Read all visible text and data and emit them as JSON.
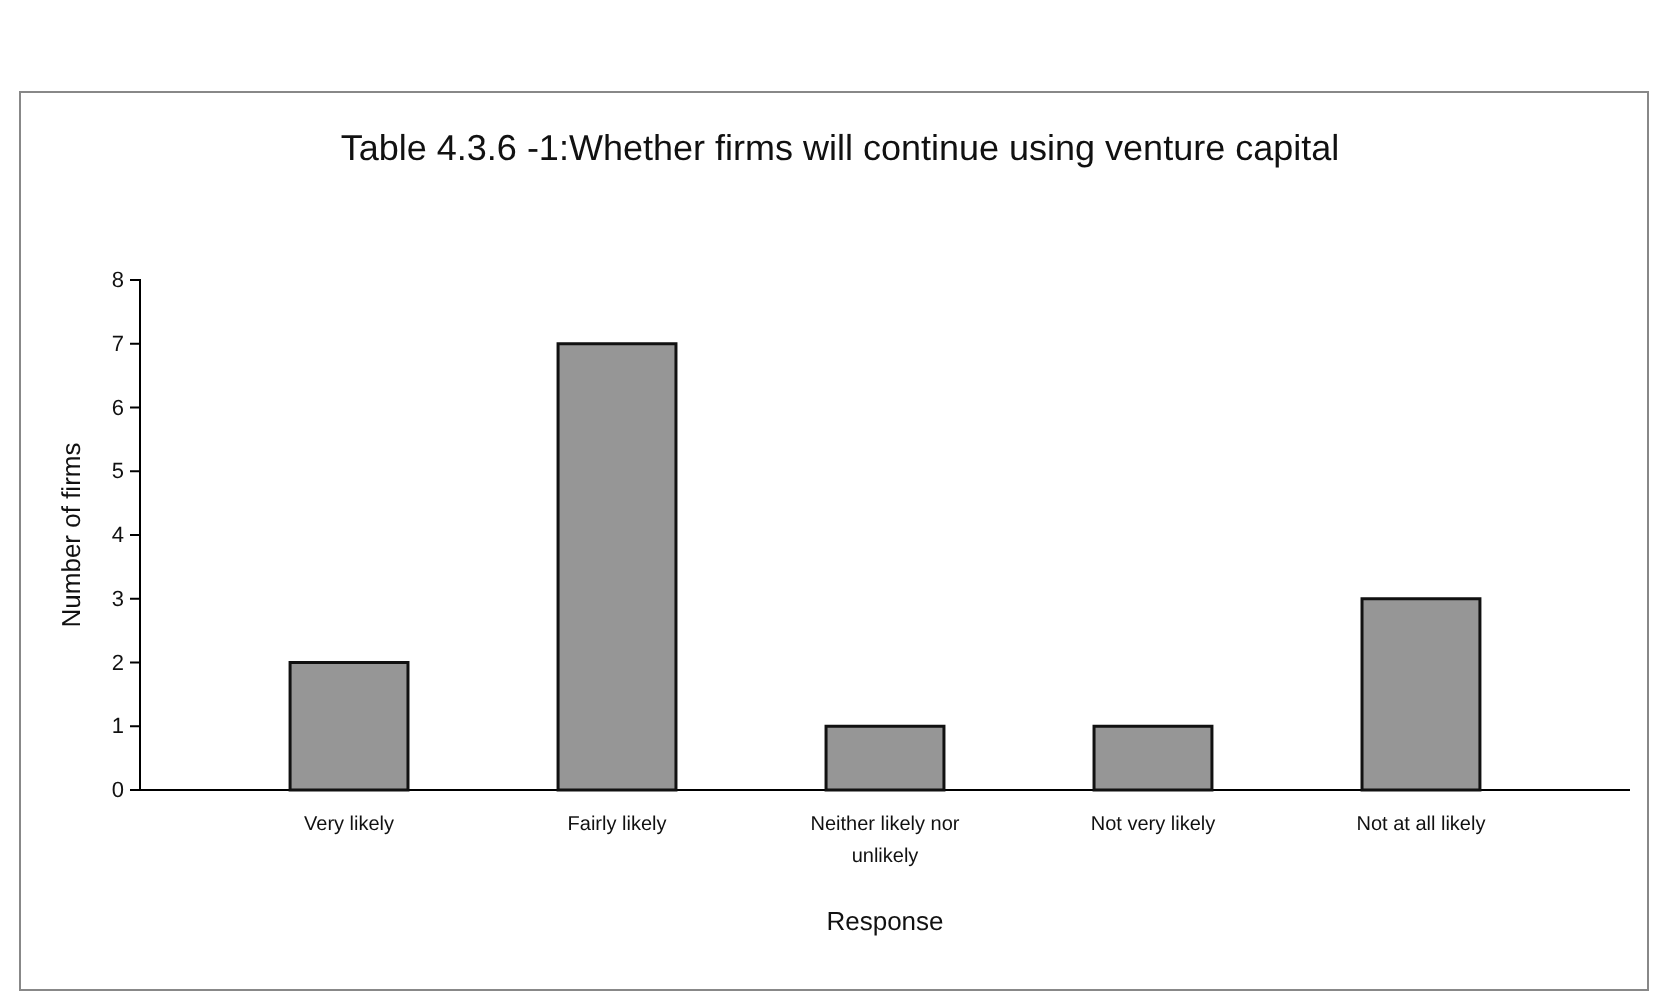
{
  "chart_data": {
    "type": "bar",
    "title": "Table 4.3.6 -1:Whether firms will continue using venture capital",
    "xlabel": "Response",
    "ylabel": "Number of firms",
    "categories": [
      "Very likely",
      "Fairly likely",
      "Neither likely nor unlikely",
      "Not very likely",
      "Not at all likely"
    ],
    "values": [
      2,
      7,
      1,
      1,
      3
    ],
    "color": "#969696",
    "ylim": [
      0,
      8
    ],
    "yticks": [
      0,
      1,
      2,
      3,
      4,
      5,
      6,
      7,
      8
    ],
    "grid": false,
    "legend": false
  }
}
